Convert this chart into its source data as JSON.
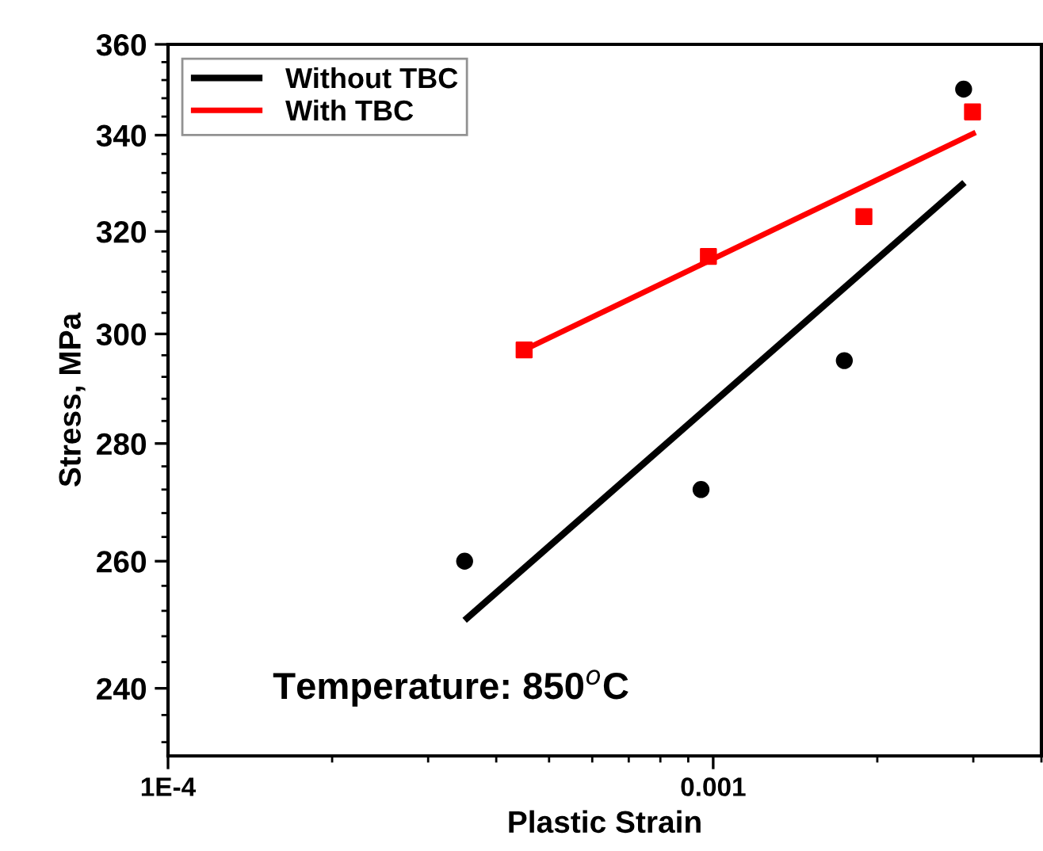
{
  "chart_data": {
    "type": "scatter",
    "xlabel": "Plastic Strain",
    "ylabel": "Stress, MPa",
    "log": "xy",
    "xlim": [
      0.0001,
      0.004
    ],
    "ylim": [
      230,
      360
    ],
    "xticks": [
      {
        "value": 0.0001,
        "label": "1E-4"
      },
      0.001
    ],
    "yticks": [
      240,
      260,
      280,
      300,
      320,
      340,
      360
    ],
    "legend": "top left",
    "grid": false,
    "annotations": [
      "Temperature: 850$^{o}$C"
    ],
    "series": [
      {
        "marker": "circle",
        "color": "#000000",
        "x": [
          0.00035,
          0.00095,
          0.00174,
          0.00288
        ],
        "values": [
          260,
          272,
          295,
          350
        ]
      },
      {
        "marker": "square",
        "color": "#ff0000",
        "x": [
          0.00045,
          0.00098,
          0.00189,
          0.00299
        ],
        "values": [
          297,
          315,
          323,
          345
        ]
      },
      {
        "type": "line",
        "name": "Without TBC",
        "color": "#000000",
        "x": [
          0.00035,
          0.00289
        ],
        "values": [
          250.5,
          330
        ]
      },
      {
        "type": "line",
        "name": "With TBC",
        "color": "#ff0000",
        "x": [
          0.00045,
          0.00303
        ],
        "values": [
          297,
          340.6
        ]
      }
    ]
  }
}
